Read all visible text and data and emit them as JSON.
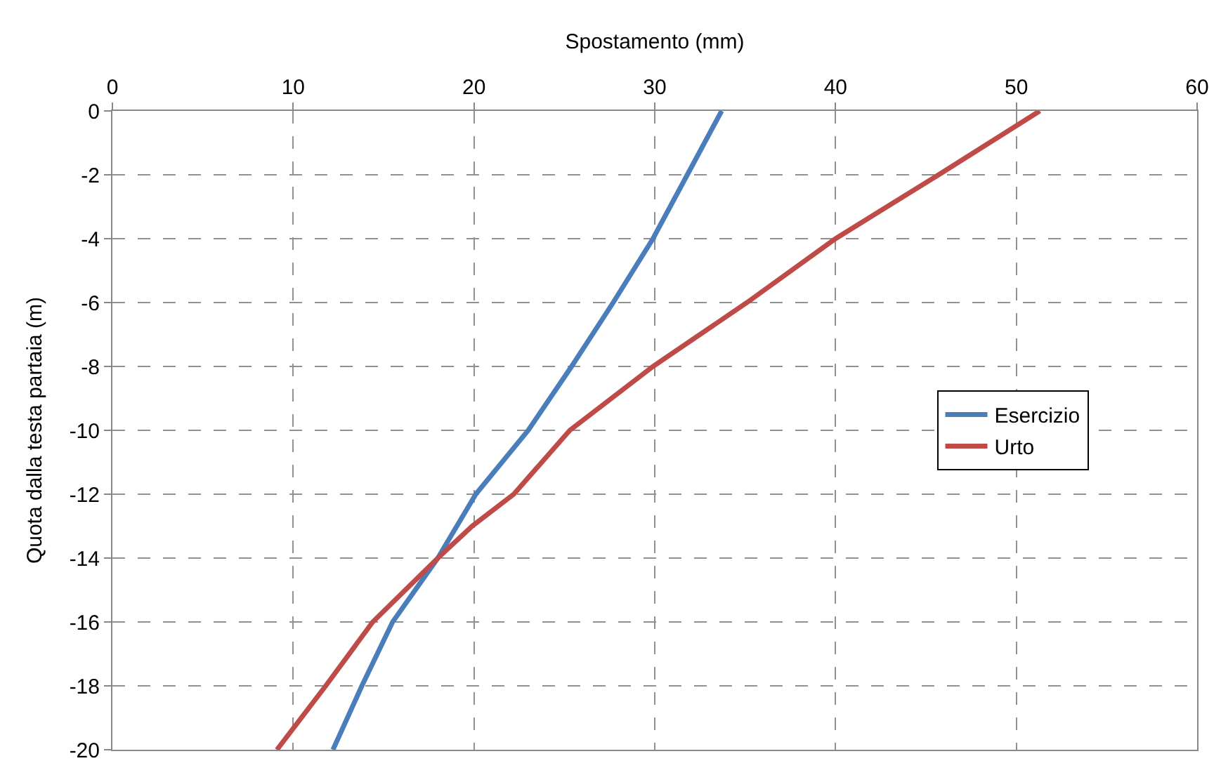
{
  "chart_data": {
    "type": "line",
    "xlabel": "Spostamento (mm)",
    "ylabel": "Quota dalla testa partaia (m)",
    "xlim": [
      0,
      60
    ],
    "xticks": [
      0,
      10,
      20,
      30,
      40,
      50,
      60
    ],
    "ylim": [
      -20,
      0
    ],
    "yticks": [
      0,
      -2,
      -4,
      -6,
      -8,
      -10,
      -12,
      -14,
      -16,
      -18,
      -20
    ],
    "grid": true,
    "legend": "right",
    "marker": "none",
    "line_style": "solid",
    "series": [
      {
        "name": "Esercizio",
        "color": "#4a7ebb",
        "x": [
          33.7,
          31.8,
          29.9,
          27.7,
          25.4,
          23.0,
          20.1,
          18.0,
          15.5,
          13.8,
          12.2
        ],
        "values": [
          0,
          -2,
          -4,
          -6,
          -8,
          -10,
          -12,
          -14,
          -16,
          -18,
          -20
        ]
      },
      {
        "name": "Urto",
        "color": "#be4b48",
        "x": [
          51.3,
          45.7,
          40.0,
          35.1,
          29.9,
          25.3,
          22.2,
          19.9,
          18.0,
          14.4,
          11.8,
          9.1
        ],
        "values": [
          0,
          -2,
          -4,
          -6,
          -8,
          -10,
          -12,
          -13,
          -14,
          -16,
          -18,
          -20
        ]
      }
    ]
  }
}
